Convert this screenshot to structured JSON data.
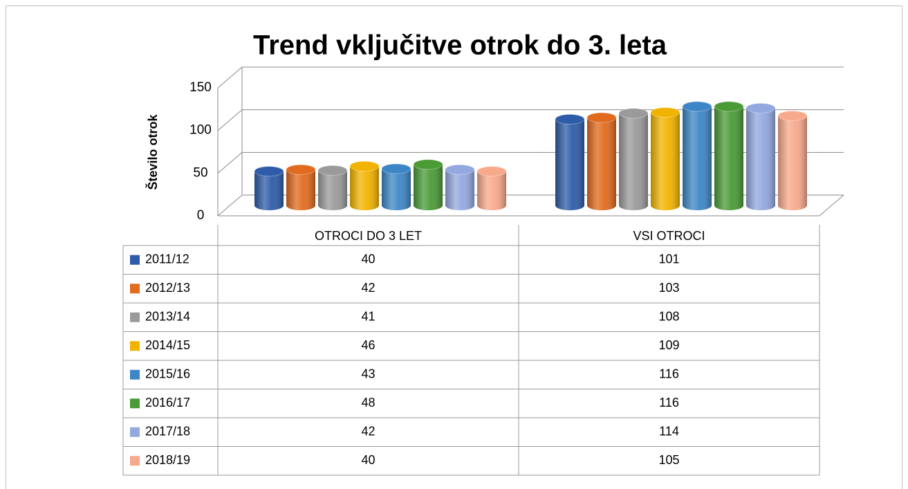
{
  "chart_data": {
    "type": "bar",
    "title": "Trend vključitve otrok do 3. leta",
    "y_label": "Število otrok",
    "categories": [
      "OTROCI DO 3 LET",
      "VSI OTROCI"
    ],
    "series": [
      {
        "name": "2011/12",
        "color": "#2e5ca8",
        "values": [
          40,
          101
        ]
      },
      {
        "name": "2012/13",
        "color": "#e06a1e",
        "values": [
          42,
          103
        ]
      },
      {
        "name": "2013/14",
        "color": "#9a9a9a",
        "values": [
          41,
          108
        ]
      },
      {
        "name": "2014/15",
        "color": "#f2b300",
        "values": [
          46,
          109
        ]
      },
      {
        "name": "2015/16",
        "color": "#3d86c6",
        "values": [
          43,
          116
        ]
      },
      {
        "name": "2016/17",
        "color": "#4a9a36",
        "values": [
          48,
          116
        ]
      },
      {
        "name": "2017/18",
        "color": "#93a8df",
        "values": [
          42,
          114
        ]
      },
      {
        "name": "2018/19",
        "color": "#f7a98c",
        "values": [
          40,
          105
        ]
      }
    ],
    "ylim": [
      0,
      150
    ],
    "yticks": [
      0,
      50,
      100,
      150
    ],
    "grid": true
  }
}
